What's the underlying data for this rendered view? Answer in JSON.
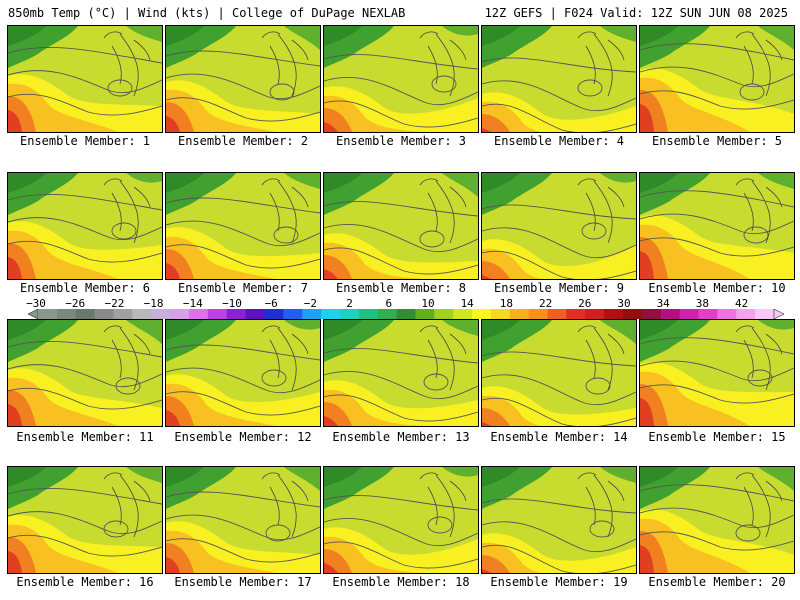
{
  "header": {
    "left": "850mb Temp (°C) | Wind (kts) | College of DuPage NEXLAB",
    "right": "12Z GEFS | F024 Valid: 12Z SUN JUN 08 2025"
  },
  "members": [
    "Ensemble Member: 1",
    "Ensemble Member: 2",
    "Ensemble Member: 3",
    "Ensemble Member: 4",
    "Ensemble Member: 5",
    "Ensemble Member: 6",
    "Ensemble Member: 7",
    "Ensemble Member: 8",
    "Ensemble Member: 9",
    "Ensemble Member: 10",
    "Ensemble Member: 11",
    "Ensemble Member: 12",
    "Ensemble Member: 13",
    "Ensemble Member: 14",
    "Ensemble Member: 15",
    "Ensemble Member: 16",
    "Ensemble Member: 17",
    "Ensemble Member: 18",
    "Ensemble Member: 19",
    "Ensemble Member: 20"
  ],
  "colorbar": {
    "ticks": [
      "−30",
      "−26",
      "−22",
      "−18",
      "−14",
      "−10",
      "−6",
      "−2",
      "2",
      "6",
      "10",
      "14",
      "18",
      "22",
      "26",
      "30",
      "34",
      "38",
      "42"
    ],
    "colors": [
      "#8a9a8a",
      "#7a8a7a",
      "#6a7a6a",
      "#8a8a8a",
      "#a0a0a0",
      "#b8b8b8",
      "#c8b0d8",
      "#d8a0e8",
      "#e070f0",
      "#c040e0",
      "#9020d0",
      "#6010c0",
      "#2030d0",
      "#2060f0",
      "#20a0f0",
      "#20d0f0",
      "#20d0c0",
      "#20c080",
      "#30b050",
      "#309030",
      "#60b020",
      "#a0d020",
      "#d0e820",
      "#f8f820",
      "#f8d820",
      "#f8b020",
      "#f89020",
      "#f06020",
      "#e03020",
      "#d02020",
      "#b01010",
      "#901010",
      "#901040",
      "#b01080",
      "#d020b0",
      "#e040d0",
      "#f070e8",
      "#f8a0f0",
      "#f8c8f8"
    ]
  }
}
